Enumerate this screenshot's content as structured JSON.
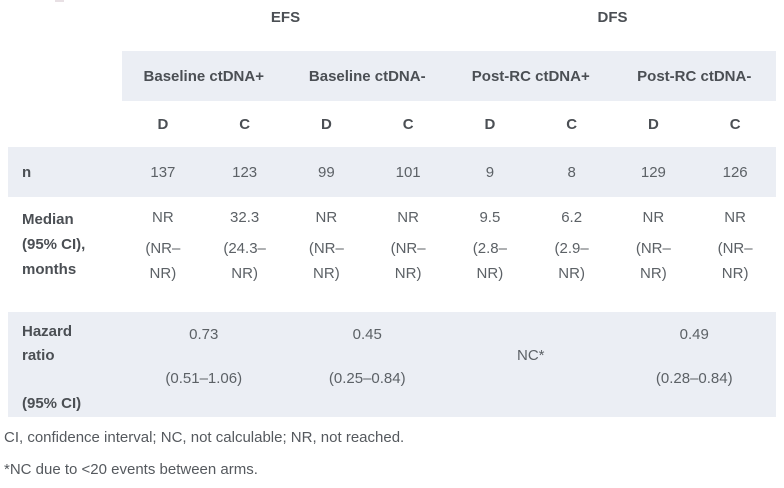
{
  "table": {
    "group_headers": {
      "efs": "EFS",
      "dfs": "DFS"
    },
    "subgroups": {
      "baseline_pos": "Baseline ctDNA+",
      "baseline_neg": "Baseline ctDNA-",
      "postrc_pos": "Post-RC ctDNA+",
      "postrc_neg": "Post-RC ctDNA-"
    },
    "arm_headers": [
      "D",
      "C",
      "D",
      "C",
      "D",
      "C",
      "D",
      "C"
    ],
    "rows": {
      "n": {
        "label": "n",
        "values": [
          "137",
          "123",
          "99",
          "101",
          "9",
          "8",
          "129",
          "126"
        ]
      },
      "median": {
        "label": "Median\n(95% CI),\nmonths",
        "cells": [
          {
            "value": "NR",
            "ci": "(NR–\nNR)"
          },
          {
            "value": "32.3",
            "ci": "(24.3–\nNR)"
          },
          {
            "value": "NR",
            "ci": "(NR–\nNR)"
          },
          {
            "value": "NR",
            "ci": "(NR–\nNR)"
          },
          {
            "value": "9.5",
            "ci": "(2.8–\nNR)"
          },
          {
            "value": "6.2",
            "ci": "(2.9–\nNR)"
          },
          {
            "value": "NR",
            "ci": "(NR–\nNR)"
          },
          {
            "value": "NR",
            "ci": "(NR–\nNR)"
          }
        ]
      },
      "hazard": {
        "label": "Hazard\nratio\n\n(95% CI)",
        "cells": [
          {
            "value": "0.73",
            "ci": "(0.51–1.06)"
          },
          {
            "value": "0.45",
            "ci": "(0.25–0.84)"
          },
          {
            "value": "NC*",
            "ci": ""
          },
          {
            "value": "0.49",
            "ci": "(0.28–0.84)"
          }
        ]
      }
    }
  },
  "footnotes": {
    "abbreviations": "CI, confidence interval; NC, not calculable; NR, not reached.",
    "nc_note": "*NC due to <20 events between arms."
  },
  "colors": {
    "band_background": "#ebeef4",
    "header_text": "#4b4f54",
    "body_text": "#5c6166"
  }
}
